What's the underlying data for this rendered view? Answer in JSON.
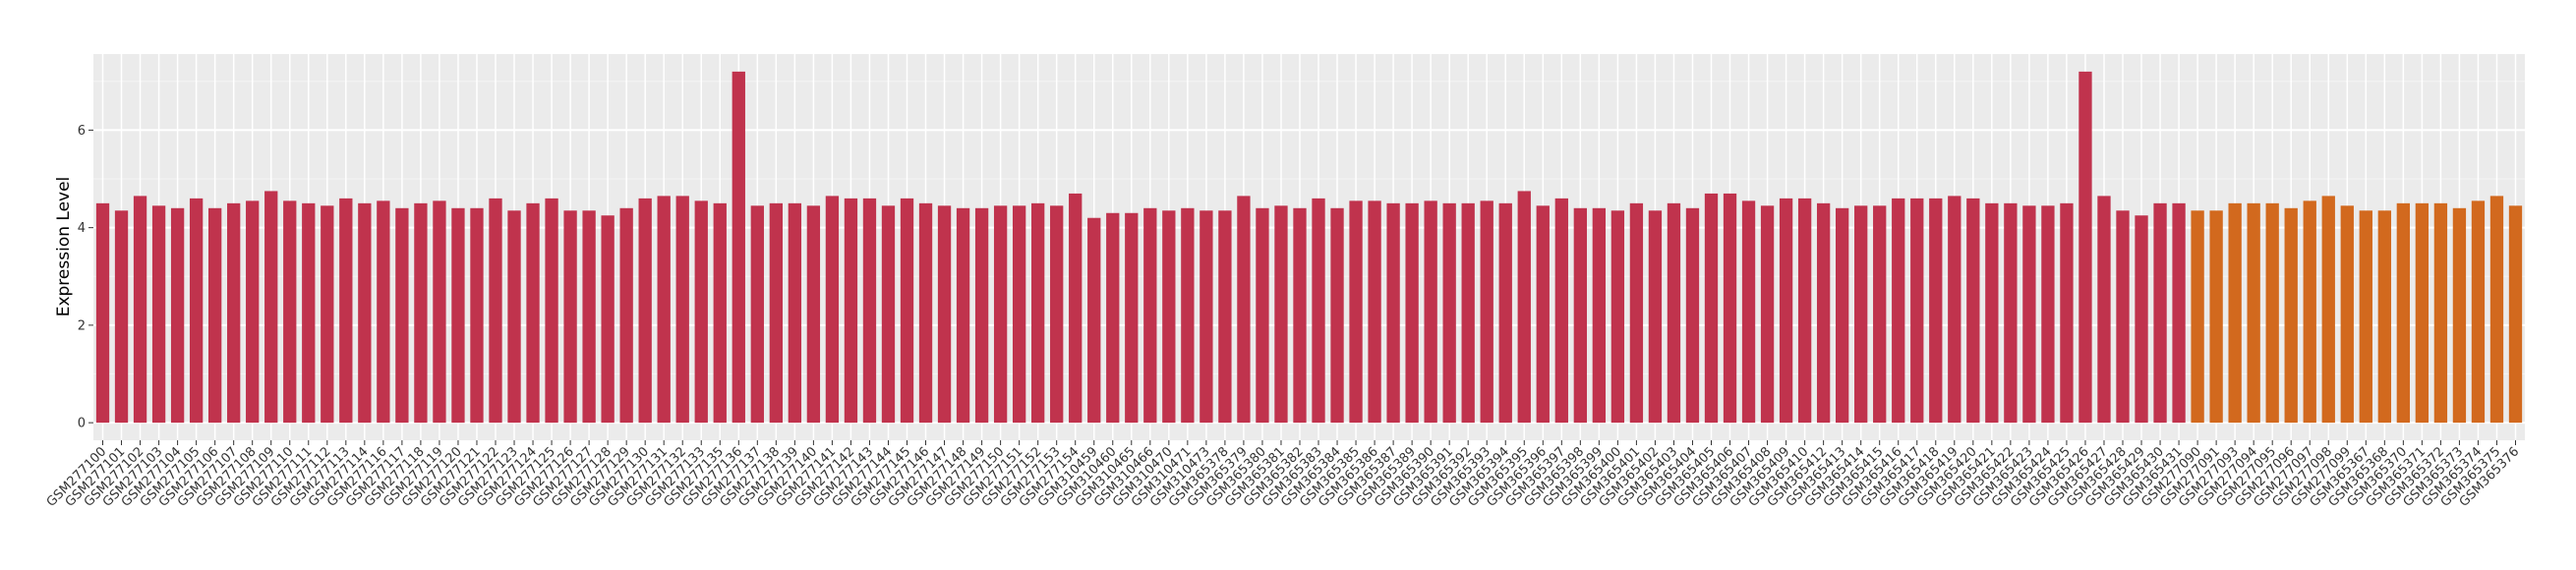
{
  "chart_data": {
    "type": "bar",
    "y_label": "Expression Level",
    "categories": [
      "GSM277100",
      "GSM277101",
      "GSM277102",
      "GSM277103",
      "GSM277104",
      "GSM277105",
      "GSM277106",
      "GSM277107",
      "GSM277108",
      "GSM277109",
      "GSM277110",
      "GSM277111",
      "GSM277112",
      "GSM277113",
      "GSM277114",
      "GSM277116",
      "GSM277117",
      "GSM277118",
      "GSM277119",
      "GSM277120",
      "GSM277121",
      "GSM277122",
      "GSM277123",
      "GSM277124",
      "GSM277125",
      "GSM277126",
      "GSM277127",
      "GSM277128",
      "GSM277129",
      "GSM277130",
      "GSM277131",
      "GSM277132",
      "GSM277133",
      "GSM277135",
      "GSM277136",
      "GSM277137",
      "GSM277138",
      "GSM277139",
      "GSM277140",
      "GSM277141",
      "GSM277142",
      "GSM277143",
      "GSM277144",
      "GSM277145",
      "GSM277146",
      "GSM277147",
      "GSM277148",
      "GSM277149",
      "GSM277150",
      "GSM277151",
      "GSM277152",
      "GSM277153",
      "GSM277154",
      "GSM310459",
      "GSM310460",
      "GSM310465",
      "GSM310466",
      "GSM310470",
      "GSM310471",
      "GSM310473",
      "GSM365378",
      "GSM365379",
      "GSM365380",
      "GSM365381",
      "GSM365382",
      "GSM365383",
      "GSM365384",
      "GSM365385",
      "GSM365386",
      "GSM365387",
      "GSM365389",
      "GSM365390",
      "GSM365391",
      "GSM365392",
      "GSM365393",
      "GSM365394",
      "GSM365395",
      "GSM365396",
      "GSM365397",
      "GSM365398",
      "GSM365399",
      "GSM365400",
      "GSM365401",
      "GSM365402",
      "GSM365403",
      "GSM365404",
      "GSM365405",
      "GSM365406",
      "GSM365407",
      "GSM365408",
      "GSM365409",
      "GSM365410",
      "GSM365412",
      "GSM365413",
      "GSM365414",
      "GSM365415",
      "GSM365416",
      "GSM365417",
      "GSM365418",
      "GSM365419",
      "GSM365420",
      "GSM365421",
      "GSM365422",
      "GSM365423",
      "GSM365424",
      "GSM365425",
      "GSM365426",
      "GSM365427",
      "GSM365428",
      "GSM365429",
      "GSM365430",
      "GSM365431",
      "GSM277090",
      "GSM277091",
      "GSM277093",
      "GSM277094",
      "GSM277095",
      "GSM277096",
      "GSM277097",
      "GSM277098",
      "GSM277099",
      "GSM365367",
      "GSM365368",
      "GSM365370",
      "GSM365371",
      "GSM365372",
      "GSM365373",
      "GSM365374",
      "GSM365375",
      "GSM365376"
    ],
    "values": [
      4.5,
      4.35,
      4.65,
      4.45,
      4.4,
      4.6,
      4.4,
      4.5,
      4.55,
      4.75,
      4.55,
      4.5,
      4.45,
      4.6,
      4.5,
      4.55,
      4.4,
      4.5,
      4.55,
      4.4,
      4.4,
      4.6,
      4.35,
      4.5,
      4.6,
      4.35,
      4.35,
      4.25,
      4.4,
      4.6,
      4.65,
      4.65,
      4.55,
      4.5,
      7.2,
      4.45,
      4.5,
      4.5,
      4.45,
      4.65,
      4.6,
      4.6,
      4.45,
      4.6,
      4.5,
      4.45,
      4.4,
      4.4,
      4.45,
      4.45,
      4.5,
      4.45,
      4.7,
      4.2,
      4.3,
      4.3,
      4.4,
      4.35,
      4.4,
      4.35,
      4.35,
      4.65,
      4.4,
      4.45,
      4.4,
      4.6,
      4.4,
      4.55,
      4.55,
      4.5,
      4.5,
      4.55,
      4.5,
      4.5,
      4.55,
      4.5,
      4.75,
      4.45,
      4.6,
      4.4,
      4.4,
      4.35,
      4.5,
      4.35,
      4.5,
      4.4,
      4.7,
      4.7,
      4.55,
      4.45,
      4.6,
      4.6,
      4.5,
      4.4,
      4.45,
      4.45,
      4.6,
      4.6,
      4.6,
      4.65,
      4.6,
      4.5,
      4.5,
      4.45,
      4.45,
      4.5,
      7.2,
      4.65,
      4.35,
      4.25,
      4.5,
      4.5,
      4.35,
      4.35,
      4.5,
      4.5,
      4.5,
      4.4,
      4.55,
      4.65,
      4.45,
      4.35,
      4.35,
      4.5,
      4.5,
      4.5,
      4.4,
      4.55,
      4.65,
      4.45
    ],
    "colors": [
      "#c0334d",
      "#c0334d",
      "#c0334d",
      "#c0334d",
      "#c0334d",
      "#c0334d",
      "#c0334d",
      "#c0334d",
      "#c0334d",
      "#c0334d",
      "#c0334d",
      "#c0334d",
      "#c0334d",
      "#c0334d",
      "#c0334d",
      "#c0334d",
      "#c0334d",
      "#c0334d",
      "#c0334d",
      "#c0334d",
      "#c0334d",
      "#c0334d",
      "#c0334d",
      "#c0334d",
      "#c0334d",
      "#c0334d",
      "#c0334d",
      "#c0334d",
      "#c0334d",
      "#c0334d",
      "#c0334d",
      "#c0334d",
      "#c0334d",
      "#c0334d",
      "#c0334d",
      "#c0334d",
      "#c0334d",
      "#c0334d",
      "#c0334d",
      "#c0334d",
      "#c0334d",
      "#c0334d",
      "#c0334d",
      "#c0334d",
      "#c0334d",
      "#c0334d",
      "#c0334d",
      "#c0334d",
      "#c0334d",
      "#c0334d",
      "#c0334d",
      "#c0334d",
      "#c0334d",
      "#c0334d",
      "#c0334d",
      "#c0334d",
      "#c0334d",
      "#c0334d",
      "#c0334d",
      "#c0334d",
      "#c0334d",
      "#c0334d",
      "#c0334d",
      "#c0334d",
      "#c0334d",
      "#c0334d",
      "#c0334d",
      "#c0334d",
      "#c0334d",
      "#c0334d",
      "#c0334d",
      "#c0334d",
      "#c0334d",
      "#c0334d",
      "#c0334d",
      "#c0334d",
      "#c0334d",
      "#c0334d",
      "#c0334d",
      "#c0334d",
      "#c0334d",
      "#c0334d",
      "#c0334d",
      "#c0334d",
      "#c0334d",
      "#c0334d",
      "#c0334d",
      "#c0334d",
      "#c0334d",
      "#c0334d",
      "#c0334d",
      "#c0334d",
      "#c0334d",
      "#c0334d",
      "#c0334d",
      "#c0334d",
      "#c0334d",
      "#c0334d",
      "#c0334d",
      "#c0334d",
      "#c0334d",
      "#c0334d",
      "#c0334d",
      "#c0334d",
      "#c0334d",
      "#c0334d",
      "#c0334d",
      "#c0334d",
      "#c0334d",
      "#c0334d",
      "#c0334d",
      "#c0334d",
      "#d2691e",
      "#d2691e",
      "#d2691e",
      "#d2691e",
      "#d2691e",
      "#d2691e",
      "#d2691e",
      "#d2691e",
      "#d2691e",
      "#d2691e",
      "#d2691e",
      "#d2691e",
      "#d2691e",
      "#d2691e",
      "#d2691e",
      "#d2691e",
      "#d2691e",
      "#d2691e"
    ],
    "ylim": [
      -0.36,
      7.56
    ],
    "yticks": [
      0,
      2,
      4,
      6
    ],
    "grid": true
  }
}
